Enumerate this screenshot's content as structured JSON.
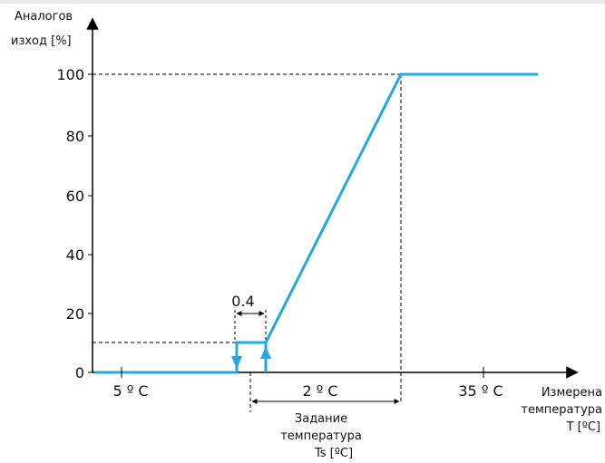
{
  "colors": {
    "curve": "#21a9e1",
    "axis": "#000000",
    "text": "#111111"
  },
  "y_axis": {
    "label_line1": "Аналогов",
    "label_line2": "изход [%]",
    "ticks": [
      "0",
      "20",
      "40",
      "60",
      "80",
      "100"
    ]
  },
  "x_axis": {
    "label_line1": "Измерена",
    "label_line2": "температура",
    "label_line3": "T [ºC]",
    "ticks": [
      {
        "label": "5 º C",
        "kind": "min"
      },
      {
        "label": "35 º C",
        "kind": "max"
      }
    ]
  },
  "annotations": {
    "hysteresis": "0.4",
    "band_width": "2 º C",
    "setpoint_line1": "Задание",
    "setpoint_line2": "температура",
    "setpoint_line3": "Ts [ºC]"
  },
  "chart_data": {
    "type": "line",
    "series": [
      {
        "values": [
          0,
          0,
          10,
          10,
          100,
          100
        ]
      }
    ],
    "levels_percent": [
      0,
      10,
      100
    ],
    "ylim": [
      0,
      100
    ]
  }
}
